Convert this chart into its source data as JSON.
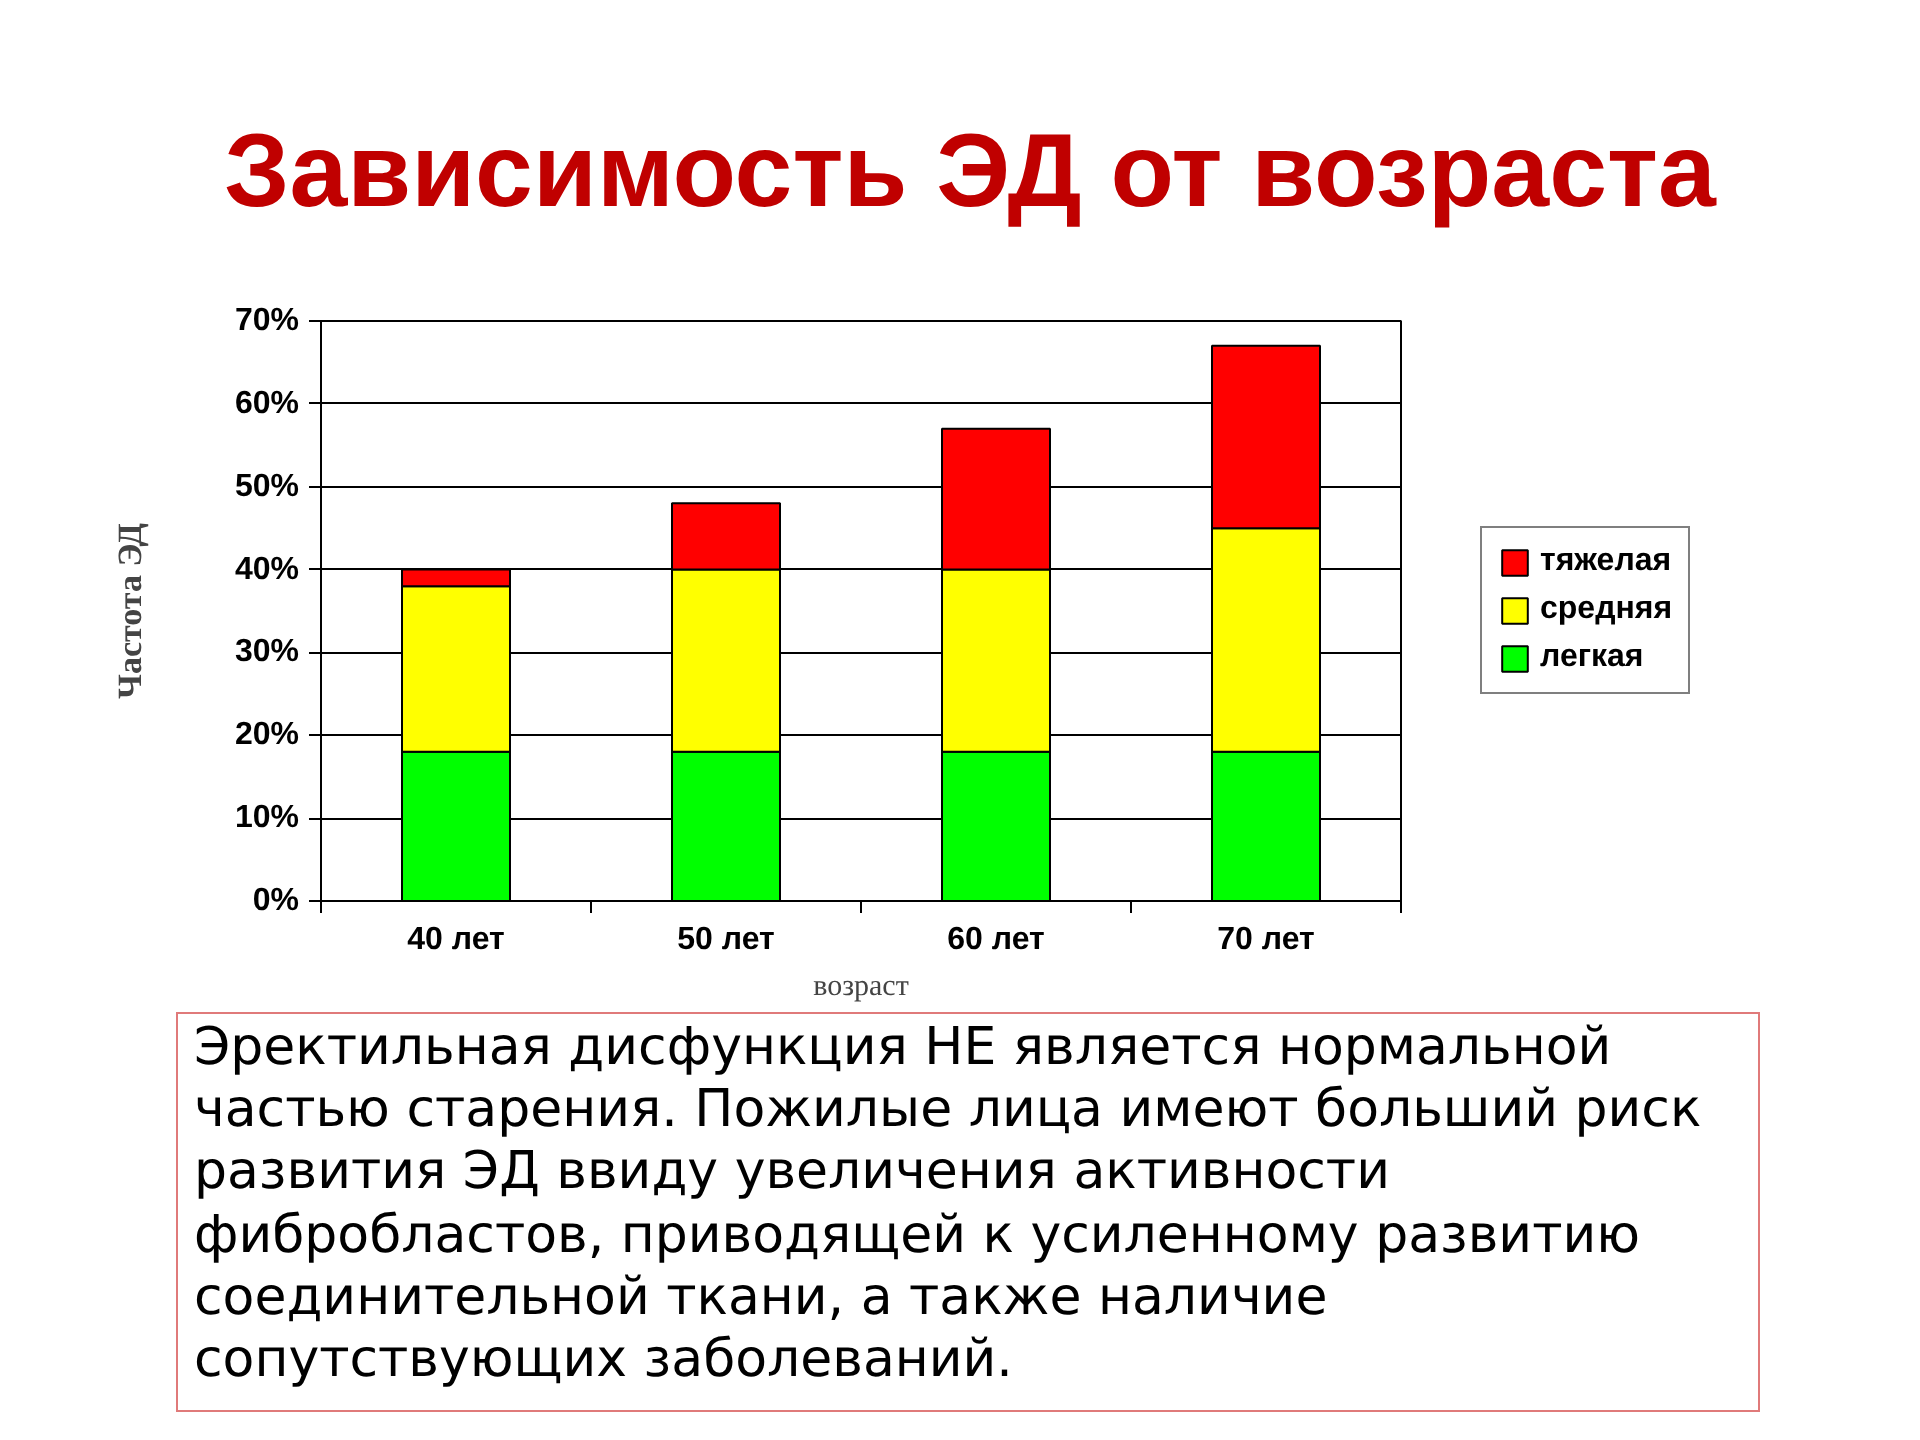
{
  "chart_data": {
    "type": "bar",
    "title": "Зависимость ЭД от возраста",
    "xlabel": "возраст",
    "ylabel": "Частота ЭД",
    "categories": [
      "40 лет",
      "50 лет",
      "60 лет",
      "70 лет"
    ],
    "series": [
      {
        "name": "легкая",
        "color": "#00ff00",
        "values": [
          18,
          18,
          18,
          18
        ]
      },
      {
        "name": "средняя",
        "color": "#ffff00",
        "values": [
          20,
          22,
          22,
          27
        ]
      },
      {
        "name": "тяжелая",
        "color": "#ff0000",
        "values": [
          2,
          8,
          17,
          22
        ]
      }
    ],
    "stacked": true,
    "ylim": [
      0,
      70
    ],
    "yticks": [
      {
        "value": 0,
        "label": "0%"
      },
      {
        "value": 10,
        "label": "10%"
      },
      {
        "value": 20,
        "label": "20%"
      },
      {
        "value": 30,
        "label": "30%"
      },
      {
        "value": 40,
        "label": "40%"
      },
      {
        "value": 50,
        "label": "50%"
      },
      {
        "value": 60,
        "label": "60%"
      },
      {
        "value": 70,
        "label": "70%"
      }
    ],
    "grid": "y",
    "legend": "right",
    "annotations": [
      "Эректильная дисфункция НЕ является нормальной частью старения. Пожилые лица имеют больший риск развития ЭД ввиду увеличения активности фибробластов, приводящей к усиленному развитию соединительной ткани, а также наличие сопутствующих заболеваний."
    ]
  }
}
